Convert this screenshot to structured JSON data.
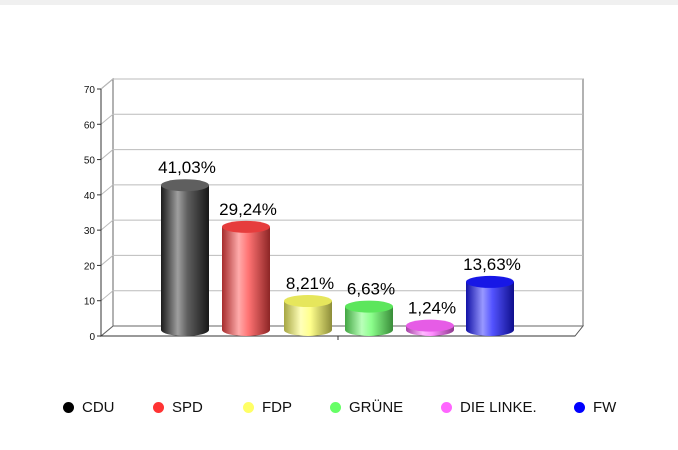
{
  "chart_data": {
    "type": "bar",
    "title": "",
    "xlabel": "",
    "ylabel": "",
    "ylim": [
      0,
      70
    ],
    "yticks": [
      0,
      10,
      20,
      30,
      40,
      50,
      60,
      70
    ],
    "grid": true,
    "legend_position": "bottom",
    "categories": [
      "CDU",
      "SPD",
      "FDP",
      "GRÜNE",
      "DIE LINKE.",
      "FW"
    ],
    "values": [
      41.03,
      29.24,
      8.21,
      6.63,
      1.24,
      13.63
    ],
    "data_labels": [
      "41,03%",
      "29,24%",
      "8,21%",
      "6,63%",
      "1,24%",
      "13,63%"
    ],
    "colors": [
      "#2a2a2a",
      "#ff4444",
      "#ffff66",
      "#66ff66",
      "#ff66ff",
      "#1a1aff"
    ],
    "legend": [
      {
        "label": "CDU",
        "color": "#000000"
      },
      {
        "label": "SPD",
        "color": "#ff3333"
      },
      {
        "label": "FDP",
        "color": "#ffff66"
      },
      {
        "label": "GRÜNE",
        "color": "#66ff66"
      },
      {
        "label": "DIE LINKE.",
        "color": "#ff66ff"
      },
      {
        "label": "FW",
        "color": "#0000ff"
      }
    ]
  }
}
